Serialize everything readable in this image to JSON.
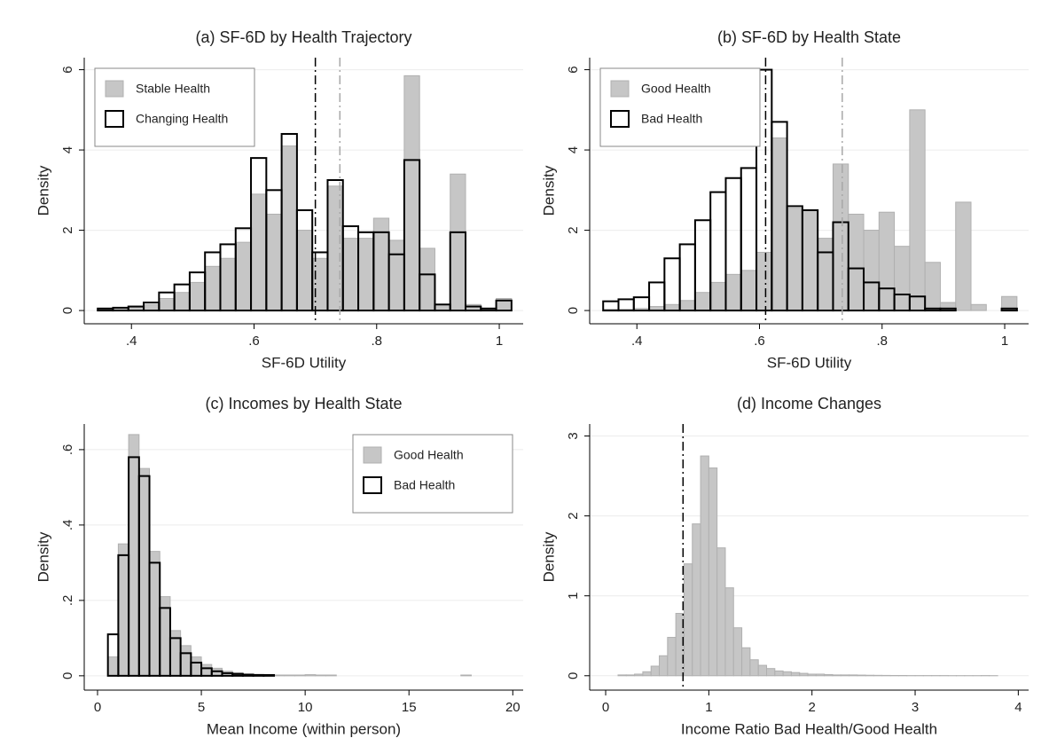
{
  "chart_data": [
    {
      "type": "histogram",
      "title": "(a) SF-6D by Health Trajectory",
      "xlabel": "SF-6D Utility",
      "ylabel": "Density",
      "bins": [
        0.345,
        0.37,
        0.395,
        0.42,
        0.445,
        0.47,
        0.495,
        0.52,
        0.545,
        0.57,
        0.595,
        0.62,
        0.645,
        0.67,
        0.695,
        0.72,
        0.745,
        0.77,
        0.795,
        0.82,
        0.845,
        0.87,
        0.895,
        0.92,
        0.945,
        0.97,
        0.995,
        1.02
      ],
      "series": [
        {
          "name": "Stable Health",
          "color": "#b0b0b0",
          "fill": "#c6c6c6",
          "values": [
            0.03,
            0.05,
            0.08,
            0.15,
            0.3,
            0.45,
            0.7,
            1.1,
            1.3,
            1.7,
            2.9,
            2.4,
            4.1,
            2.0,
            1.3,
            3.1,
            1.8,
            1.8,
            2.3,
            1.75,
            5.85,
            1.55,
            0.15,
            3.4,
            0.15,
            0.02,
            0.3
          ]
        },
        {
          "name": "Changing Health",
          "color": "#000000",
          "fill": "none",
          "values": [
            0.05,
            0.07,
            0.1,
            0.2,
            0.45,
            0.65,
            0.95,
            1.45,
            1.65,
            2.05,
            3.8,
            3.0,
            4.4,
            2.5,
            1.45,
            3.25,
            2.1,
            1.95,
            1.95,
            1.4,
            3.75,
            0.9,
            0.15,
            1.95,
            0.1,
            0.05,
            0.25
          ]
        }
      ],
      "vlines": [
        {
          "value": 0.7,
          "color": "#000000"
        },
        {
          "value": 0.74,
          "color": "#a8a8a8"
        }
      ],
      "xlim": [
        0.323,
        1.039
      ],
      "ylim": [
        -0.33,
        6.3
      ],
      "xticks": [
        {
          "value": 0.4,
          "label": ".4"
        },
        {
          "value": 0.6,
          "label": ".6"
        },
        {
          "value": 0.8,
          "label": ".8"
        },
        1
      ],
      "yticks": [
        0,
        2,
        4,
        6
      ],
      "grid": true,
      "legend": "top-left"
    },
    {
      "type": "histogram",
      "title": "(b) SF-6D by Health State",
      "xlabel": "SF-6D Utility",
      "ylabel": "Density",
      "bins": [
        0.345,
        0.37,
        0.395,
        0.42,
        0.445,
        0.47,
        0.495,
        0.52,
        0.545,
        0.57,
        0.595,
        0.62,
        0.645,
        0.67,
        0.695,
        0.72,
        0.745,
        0.77,
        0.795,
        0.82,
        0.845,
        0.87,
        0.895,
        0.92,
        0.945,
        0.97,
        0.995,
        1.02
      ],
      "series": [
        {
          "name": "Good Health",
          "color": "#b0b0b0",
          "fill": "#c6c6c6",
          "values": [
            0.03,
            0.03,
            0.05,
            0.1,
            0.15,
            0.25,
            0.45,
            0.7,
            0.9,
            1.0,
            1.45,
            4.3,
            2.55,
            2.5,
            1.8,
            3.65,
            2.4,
            2.0,
            2.45,
            1.6,
            5.0,
            1.2,
            0.2,
            2.7,
            0.15,
            0.0,
            0.35
          ]
        },
        {
          "name": "Bad Health",
          "color": "#000000",
          "fill": "none",
          "values": [
            0.23,
            0.28,
            0.33,
            0.7,
            1.3,
            1.65,
            2.25,
            2.95,
            3.3,
            3.55,
            6.0,
            4.7,
            2.6,
            2.5,
            1.45,
            2.2,
            1.05,
            0.7,
            0.55,
            0.4,
            0.35,
            0.05,
            0.05,
            0.0,
            0.0,
            0.0,
            0.05
          ]
        }
      ],
      "vlines": [
        {
          "value": 0.61,
          "color": "#000000"
        },
        {
          "value": 0.735,
          "color": "#a8a8a8"
        }
      ],
      "xlim": [
        0.323,
        1.039
      ],
      "ylim": [
        -0.33,
        6.3
      ],
      "xticks": [
        {
          "value": 0.4,
          "label": ".4"
        },
        {
          "value": 0.6,
          "label": ".6"
        },
        {
          "value": 0.8,
          "label": ".8"
        },
        1
      ],
      "yticks": [
        0,
        2,
        4,
        6
      ],
      "grid": true,
      "legend": "top-left"
    },
    {
      "type": "histogram",
      "title": "(c) Incomes by Health State",
      "xlabel": "Mean Income (within person)",
      "ylabel": "Density",
      "bins": [
        0.5,
        1,
        1.5,
        2,
        2.5,
        3,
        3.5,
        4,
        4.5,
        5,
        5.5,
        6,
        6.5,
        7,
        7.5,
        8,
        8.5,
        9,
        9.5,
        10,
        10.5,
        11,
        11.5,
        12,
        12.5,
        13,
        13.5,
        14,
        14.5,
        15,
        15.5,
        16,
        16.5,
        17,
        17.5,
        18,
        18.5
      ],
      "series": [
        {
          "name": "Good Health",
          "color": "#b0b0b0",
          "fill": "#c6c6c6",
          "values": [
            0.05,
            0.35,
            0.64,
            0.55,
            0.33,
            0.21,
            0.12,
            0.08,
            0.05,
            0.03,
            0.02,
            0.012,
            0.008,
            0.005,
            0.004,
            0.003,
            0.002,
            0.002,
            0.002,
            0.003,
            0.002,
            0.002,
            0,
            0,
            0,
            0,
            0,
            0,
            0,
            0,
            0,
            0,
            0,
            0,
            0.002,
            0
          ]
        },
        {
          "name": "Bad Health",
          "color": "#000000",
          "fill": "none",
          "values": [
            0.11,
            0.32,
            0.58,
            0.53,
            0.3,
            0.18,
            0.1,
            0.06,
            0.035,
            0.02,
            0.012,
            0.007,
            0.005,
            0.003,
            0.002,
            0.002,
            0,
            0,
            0,
            0,
            0,
            0,
            0,
            0,
            0,
            0,
            0,
            0,
            0,
            0,
            0,
            0,
            0,
            0,
            0,
            0
          ]
        }
      ],
      "xlim": [
        -0.64,
        20.5
      ],
      "ylim": [
        -0.038,
        0.668
      ],
      "xticks": [
        0,
        5,
        10,
        15,
        20
      ],
      "yticks": [
        0,
        {
          "value": 0.2,
          "label": ".2"
        },
        {
          "value": 0.4,
          "label": ".4"
        },
        {
          "value": 0.6,
          "label": ".6"
        }
      ],
      "grid": true,
      "legend": "top-right"
    },
    {
      "type": "histogram",
      "title": "(d) Income Changes",
      "xlabel": "Income Ratio Bad Health/Good Health",
      "ylabel": "Density",
      "bins": [
        0.12,
        0.2,
        0.28,
        0.36,
        0.44,
        0.52,
        0.6,
        0.68,
        0.76,
        0.84,
        0.92,
        1.0,
        1.08,
        1.16,
        1.24,
        1.32,
        1.4,
        1.48,
        1.56,
        1.64,
        1.72,
        1.8,
        1.88,
        1.96,
        2.04,
        2.12,
        2.2,
        2.28,
        2.36,
        2.44,
        2.52,
        2.6,
        2.68,
        2.76,
        2.84,
        2.92,
        3.0,
        3.08,
        3.16,
        3.24,
        3.32,
        3.4,
        3.48,
        3.56,
        3.64,
        3.72,
        3.8
      ],
      "values": [
        0.01,
        0.01,
        0.02,
        0.05,
        0.12,
        0.25,
        0.48,
        0.78,
        1.4,
        1.9,
        2.75,
        2.6,
        1.6,
        1.1,
        0.6,
        0.35,
        0.2,
        0.13,
        0.09,
        0.06,
        0.05,
        0.04,
        0.03,
        0.02,
        0.02,
        0.015,
        0.01,
        0.01,
        0.01,
        0.008,
        0.006,
        0.005,
        0.004,
        0.003,
        0.003,
        0.002,
        0.002,
        0.002,
        0.002,
        0.002,
        0.001,
        0.001,
        0.001,
        0.001,
        0.002,
        0.001
      ],
      "color": "#b0b0b0",
      "fill": "#c6c6c6",
      "vlines": [
        {
          "value": 0.75,
          "color": "#000000"
        }
      ],
      "xlim": [
        -0.155,
        4.1
      ],
      "ylim": [
        -0.18,
        3.15
      ],
      "xticks": [
        0,
        1,
        2,
        3,
        4
      ],
      "yticks": [
        0,
        1,
        2,
        3
      ],
      "grid": true
    }
  ]
}
